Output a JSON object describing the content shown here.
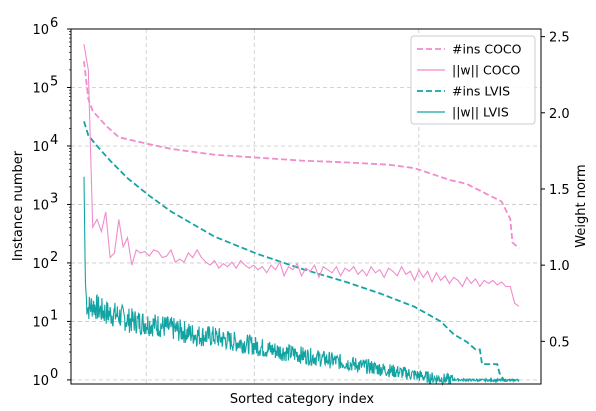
{
  "chart_data": {
    "type": "line",
    "xlabel": "Sorted category index",
    "ylabel_left": "Instance number",
    "ylabel_right": "Weight norm",
    "left_axis": {
      "scale": "log",
      "ylim_exp": [
        -0.07,
        6.0
      ],
      "ticks": [
        {
          "base": "10",
          "exp": "0",
          "value": 0
        },
        {
          "base": "10",
          "exp": "1",
          "value": 1
        },
        {
          "base": "10",
          "exp": "2",
          "value": 2
        },
        {
          "base": "10",
          "exp": "3",
          "value": 3
        },
        {
          "base": "10",
          "exp": "4",
          "value": 4
        },
        {
          "base": "10",
          "exp": "5",
          "value": 5
        },
        {
          "base": "10",
          "exp": "6",
          "value": 6
        }
      ]
    },
    "right_axis": {
      "scale": "linear",
      "ylim": [
        0.22,
        2.55
      ],
      "ticks": [
        0.5,
        1.0,
        1.5,
        2.0,
        2.5
      ],
      "tick_labels": [
        "0.5",
        "1.0",
        "1.5",
        "2.0",
        "2.5"
      ]
    },
    "grid": true,
    "x_grid_fractions": [
      0.16,
      0.39,
      0.74
    ],
    "legend": {
      "placement": "top-right",
      "entries": [
        {
          "label": "#ins COCO",
          "color": "#f08ccc",
          "dash": true
        },
        {
          "label": "||w|| COCO",
          "color": "#f08ccc",
          "dash": false
        },
        {
          "label": "#ins LVIS",
          "color": "#14a3a3",
          "dash": true
        },
        {
          "label": "||w|| LVIS",
          "color": "#14a3a3",
          "dash": false
        }
      ]
    },
    "series": [
      {
        "name": "#ins COCO",
        "axis": "left",
        "color": "#f08ccc",
        "dash": true,
        "points": [
          [
            0.0,
            5.45
          ],
          [
            0.01,
            4.8
          ],
          [
            0.02,
            4.6
          ],
          [
            0.05,
            4.35
          ],
          [
            0.08,
            4.15
          ],
          [
            0.12,
            4.08
          ],
          [
            0.2,
            3.95
          ],
          [
            0.3,
            3.85
          ],
          [
            0.4,
            3.8
          ],
          [
            0.5,
            3.75
          ],
          [
            0.6,
            3.72
          ],
          [
            0.7,
            3.68
          ],
          [
            0.76,
            3.62
          ],
          [
            0.8,
            3.52
          ],
          [
            0.84,
            3.42
          ],
          [
            0.88,
            3.35
          ],
          [
            0.92,
            3.2
          ],
          [
            0.96,
            3.05
          ],
          [
            0.98,
            2.75
          ],
          [
            0.985,
            2.35
          ],
          [
            1.0,
            2.25
          ]
        ]
      },
      {
        "name": "#ins LVIS",
        "axis": "left",
        "color": "#14a3a3",
        "dash": true,
        "points": [
          [
            0.0,
            4.42
          ],
          [
            0.01,
            4.18
          ],
          [
            0.03,
            4.0
          ],
          [
            0.06,
            3.75
          ],
          [
            0.1,
            3.45
          ],
          [
            0.15,
            3.15
          ],
          [
            0.2,
            2.88
          ],
          [
            0.3,
            2.45
          ],
          [
            0.4,
            2.15
          ],
          [
            0.5,
            1.9
          ],
          [
            0.6,
            1.68
          ],
          [
            0.68,
            1.48
          ],
          [
            0.76,
            1.25
          ],
          [
            0.82,
            1.0
          ],
          [
            0.85,
            0.78
          ],
          [
            0.88,
            0.65
          ],
          [
            0.9,
            0.52
          ],
          [
            0.91,
            0.52
          ],
          [
            0.915,
            0.27
          ],
          [
            0.95,
            0.27
          ],
          [
            0.955,
            0.12
          ],
          [
            0.965,
            0.0
          ],
          [
            1.0,
            0.0
          ]
        ]
      },
      {
        "name": "||w|| COCO",
        "axis": "right",
        "color": "#f08ccc",
        "dash": false,
        "points": [
          [
            0.0,
            2.45
          ],
          [
            0.01,
            2.28
          ],
          [
            0.02,
            1.25
          ],
          [
            0.03,
            1.3
          ],
          [
            0.04,
            1.22
          ],
          [
            0.05,
            1.35
          ],
          [
            0.06,
            1.05
          ],
          [
            0.07,
            1.08
          ],
          [
            0.08,
            1.3
          ],
          [
            0.09,
            1.12
          ],
          [
            0.1,
            1.18
          ],
          [
            0.11,
            1.0
          ],
          [
            0.12,
            1.1
          ],
          [
            0.13,
            1.08
          ],
          [
            0.14,
            1.09
          ],
          [
            0.15,
            1.06
          ],
          [
            0.16,
            1.1
          ],
          [
            0.17,
            1.09
          ],
          [
            0.18,
            1.05
          ],
          [
            0.19,
            1.06
          ],
          [
            0.2,
            1.1
          ],
          [
            0.21,
            1.02
          ],
          [
            0.22,
            1.04
          ],
          [
            0.23,
            1.02
          ],
          [
            0.24,
            1.08
          ],
          [
            0.25,
            1.05
          ],
          [
            0.26,
            1.1
          ],
          [
            0.27,
            1.05
          ],
          [
            0.28,
            1.02
          ],
          [
            0.29,
            1.0
          ],
          [
            0.3,
            1.03
          ],
          [
            0.31,
            0.98
          ],
          [
            0.32,
            1.01
          ],
          [
            0.33,
            0.99
          ],
          [
            0.34,
            1.02
          ],
          [
            0.35,
            0.98
          ],
          [
            0.36,
            1.03
          ],
          [
            0.37,
            1.0
          ],
          [
            0.38,
            0.98
          ],
          [
            0.39,
            1.0
          ],
          [
            0.4,
            0.97
          ],
          [
            0.41,
            0.99
          ],
          [
            0.42,
            0.95
          ],
          [
            0.43,
            1.0
          ],
          [
            0.44,
            0.97
          ],
          [
            0.45,
            1.02
          ],
          [
            0.46,
            0.93
          ],
          [
            0.47,
            0.99
          ],
          [
            0.48,
            0.97
          ],
          [
            0.49,
            1.01
          ],
          [
            0.5,
            0.93
          ],
          [
            0.51,
            0.98
          ],
          [
            0.52,
            0.96
          ],
          [
            0.53,
            1.0
          ],
          [
            0.54,
            0.92
          ],
          [
            0.55,
            0.99
          ],
          [
            0.56,
            0.97
          ],
          [
            0.57,
            0.95
          ],
          [
            0.58,
            0.99
          ],
          [
            0.59,
            0.93
          ],
          [
            0.6,
            0.98
          ],
          [
            0.61,
            0.96
          ],
          [
            0.62,
            0.99
          ],
          [
            0.63,
            0.94
          ],
          [
            0.64,
            0.97
          ],
          [
            0.65,
            0.93
          ],
          [
            0.66,
            0.99
          ],
          [
            0.67,
            0.95
          ],
          [
            0.68,
            0.97
          ],
          [
            0.69,
            0.92
          ],
          [
            0.7,
            0.98
          ],
          [
            0.71,
            0.96
          ],
          [
            0.72,
            0.93
          ],
          [
            0.73,
            0.99
          ],
          [
            0.74,
            0.94
          ],
          [
            0.75,
            0.96
          ],
          [
            0.76,
            0.9
          ],
          [
            0.77,
            0.97
          ],
          [
            0.78,
            0.92
          ],
          [
            0.79,
            0.96
          ],
          [
            0.8,
            0.89
          ],
          [
            0.81,
            0.95
          ],
          [
            0.82,
            0.9
          ],
          [
            0.83,
            0.93
          ],
          [
            0.84,
            0.88
          ],
          [
            0.85,
            0.92
          ],
          [
            0.86,
            0.9
          ],
          [
            0.87,
            0.86
          ],
          [
            0.88,
            0.92
          ],
          [
            0.89,
            0.88
          ],
          [
            0.9,
            0.91
          ],
          [
            0.91,
            0.86
          ],
          [
            0.92,
            0.9
          ],
          [
            0.93,
            0.88
          ],
          [
            0.94,
            0.9
          ],
          [
            0.95,
            0.87
          ],
          [
            0.96,
            0.89
          ],
          [
            0.97,
            0.86
          ],
          [
            0.98,
            0.86
          ],
          [
            0.99,
            0.75
          ],
          [
            1.0,
            0.73
          ]
        ]
      },
      {
        "name": "||w|| LVIS",
        "axis": "right",
        "color": "#14a3a3",
        "dash": false,
        "points": [
          [
            0.0,
            1.58
          ],
          [
            0.003,
            0.9
          ],
          [
            0.006,
            0.75
          ],
          [
            0.01,
            0.72
          ],
          [
            0.02,
            0.74
          ],
          [
            0.04,
            0.7
          ],
          [
            0.06,
            0.68
          ],
          [
            0.08,
            0.67
          ],
          [
            0.1,
            0.64
          ],
          [
            0.14,
            0.62
          ],
          [
            0.18,
            0.6
          ],
          [
            0.22,
            0.57
          ],
          [
            0.26,
            0.54
          ],
          [
            0.3,
            0.53
          ],
          [
            0.34,
            0.5
          ],
          [
            0.38,
            0.48
          ],
          [
            0.42,
            0.45
          ],
          [
            0.46,
            0.43
          ],
          [
            0.5,
            0.41
          ],
          [
            0.54,
            0.39
          ],
          [
            0.58,
            0.37
          ],
          [
            0.62,
            0.35
          ],
          [
            0.66,
            0.33
          ],
          [
            0.7,
            0.31
          ],
          [
            0.74,
            0.29
          ],
          [
            0.78,
            0.27
          ],
          [
            0.8,
            0.26
          ],
          [
            0.84,
            0.25
          ],
          [
            0.9,
            0.245
          ],
          [
            1.0,
            0.245
          ]
        ]
      }
    ]
  }
}
